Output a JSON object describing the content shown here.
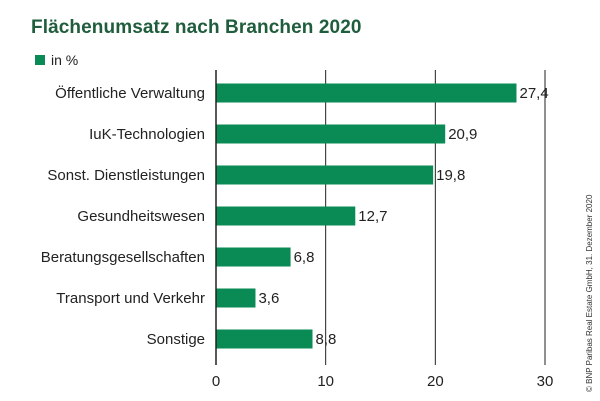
{
  "chart_data": {
    "type": "bar",
    "orientation": "horizontal",
    "title": "Flächenumsatz nach Branchen 2020",
    "legend": [
      {
        "label": "in %",
        "color": "#0a8b55"
      }
    ],
    "categories": [
      "Öffentliche Verwaltung",
      "IuK-Technologien",
      "Sonst. Dienstleistungen",
      "Gesundheitswesen",
      "Beratungsgesellschaften",
      "Transport und Verkehr",
      "Sonstige"
    ],
    "values": [
      27.4,
      20.9,
      19.8,
      12.7,
      6.8,
      3.6,
      8.8
    ],
    "value_labels": [
      "27,4",
      "20,9",
      "19,8",
      "12,7",
      "6,8",
      "3,6",
      "8,8"
    ],
    "xlim": [
      0,
      30
    ],
    "xticks": [
      0,
      10,
      20,
      30
    ],
    "xtick_labels": [
      "0",
      "10",
      "20",
      "30"
    ],
    "grid": true,
    "xlabel": "",
    "ylabel": "",
    "bar_color": "#0a8b55",
    "source": "© BNP Paribas Real Estate GmbH, 31. Dezember 2020"
  },
  "colors": {
    "title": "#1f5d3c",
    "grid": "#222222",
    "axis": "#222222"
  }
}
